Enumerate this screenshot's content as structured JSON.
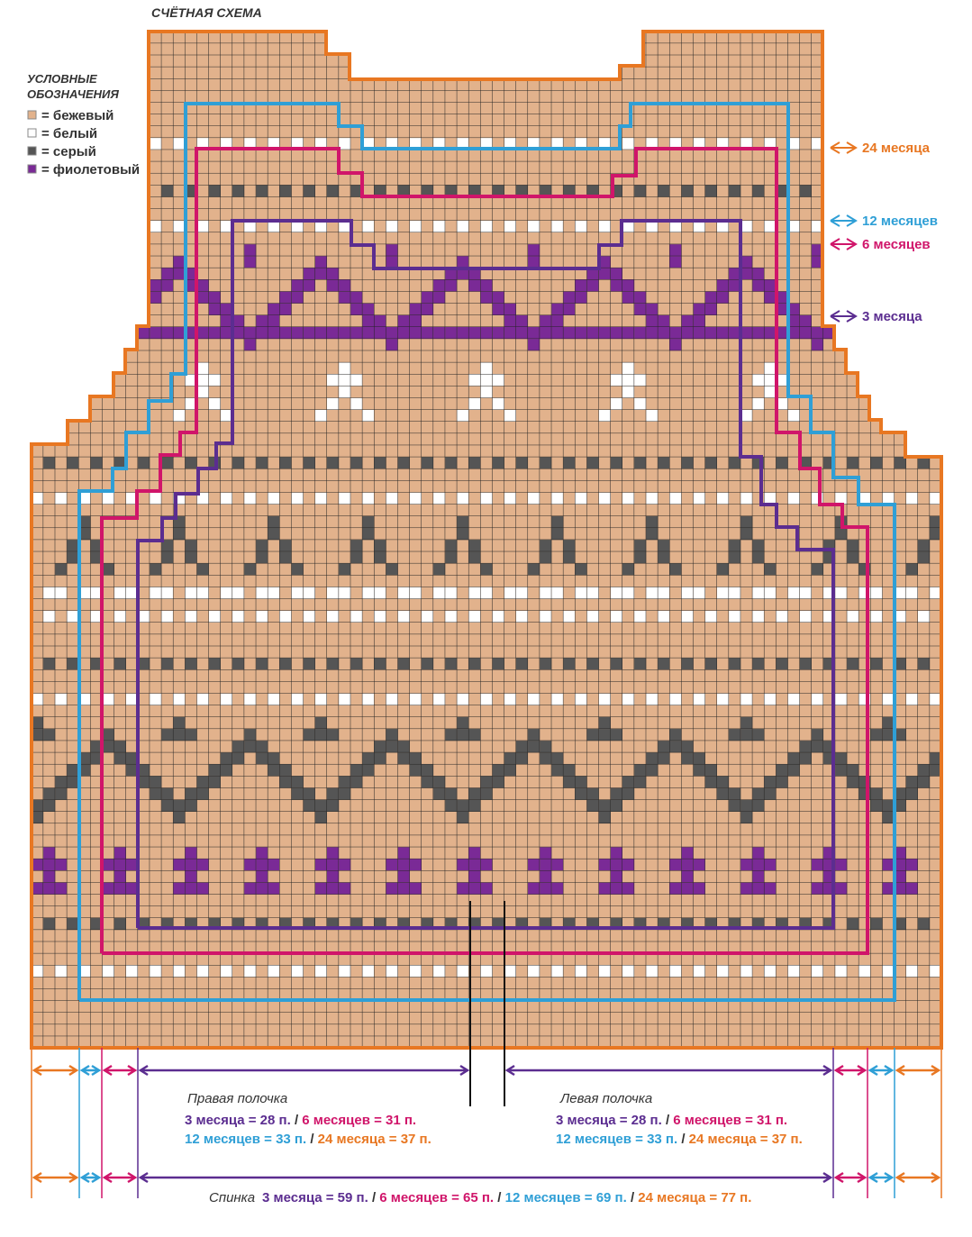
{
  "title": "СЧЁТНАЯ СХЕМА",
  "legend": {
    "title": [
      "УСЛОВНЫЕ",
      "ОБОЗНАЧЕНИЯ"
    ],
    "items": [
      {
        "label": "= бежевый",
        "color": "#e2b28c"
      },
      {
        "label": "= белый",
        "color": "#ffffff"
      },
      {
        "label": "= серый",
        "color": "#555555"
      },
      {
        "label": "= фиолетовый",
        "color": "#7a2a96"
      }
    ]
  },
  "size_labels": [
    {
      "text": "24 месяца",
      "color": "#e87722"
    },
    {
      "text": "12 месяцев",
      "color": "#2f9fd6"
    },
    {
      "text": "6 месяцев",
      "color": "#d0156a"
    },
    {
      "text": "3 месяца",
      "color": "#5b2d90"
    }
  ],
  "right_front": {
    "title": "Правая полочка",
    "lines": [
      [
        {
          "text": "3 месяца = 28 п.",
          "color": "#5b2d90"
        },
        {
          "text": " / ",
          "color": "#333333"
        },
        {
          "text": "6 месяцев = 31 п.",
          "color": "#d0156a"
        }
      ],
      [
        {
          "text": "12 месяцев =  33 п.",
          "color": "#2f9fd6"
        },
        {
          "text": " / ",
          "color": "#333333"
        },
        {
          "text": "24 месяца = 37 п.",
          "color": "#e87722"
        }
      ]
    ]
  },
  "left_front": {
    "title": "Левая полочка",
    "lines": [
      [
        {
          "text": "3 месяца = 28 п.",
          "color": "#5b2d90"
        },
        {
          "text": " / ",
          "color": "#333333"
        },
        {
          "text": "6 месяцев = 31 п.",
          "color": "#d0156a"
        }
      ],
      [
        {
          "text": "12 месяцев =  33 п.",
          "color": "#2f9fd6"
        },
        {
          "text": " / ",
          "color": "#333333"
        },
        {
          "text": "24 месяца = 37 п.",
          "color": "#e87722"
        }
      ]
    ]
  },
  "back": {
    "title": "Спинка",
    "parts": [
      {
        "text": "3 месяца = 59 п.",
        "color": "#5b2d90"
      },
      {
        "text": " / ",
        "color": "#333333"
      },
      {
        "text": "6 месяцев = 65 п.",
        "color": "#d0156a"
      },
      {
        "text": " / ",
        "color": "#333333"
      },
      {
        "text": "12 месяцев =  69 п.",
        "color": "#2f9fd6"
      },
      {
        "text": " / ",
        "color": "#333333"
      },
      {
        "text": "24 месяца = 77 п.",
        "color": "#e87722"
      }
    ]
  }
}
